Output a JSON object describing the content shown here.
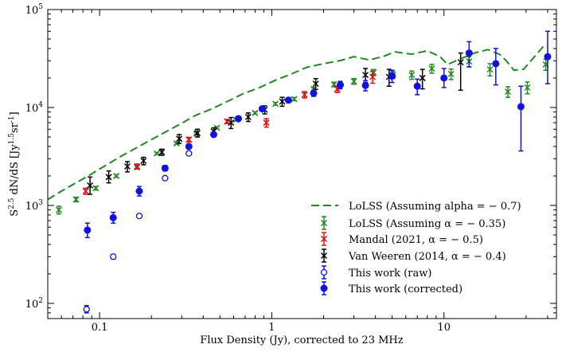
{
  "chart_data": {
    "type": "scatter",
    "xscale": "log",
    "yscale": "log",
    "xlim": [
      0.05,
      45
    ],
    "ylim": [
      70,
      100000
    ],
    "xlabel": "Flux Density (Jy), corrected to 23 MHz",
    "ylabel_main": "S",
    "ylabel_exp1": "2.5",
    "ylabel_mid": " dN/dS [Jy",
    "ylabel_exp2": "1.5",
    "ylabel_mid2": "sr",
    "ylabel_exp3": "-1",
    "ylabel_end": "]",
    "x_ticks": [
      {
        "value": 0.1,
        "label": "0.1"
      },
      {
        "value": 1,
        "label": "1"
      },
      {
        "value": 10,
        "label": "10"
      }
    ],
    "y_ticks": [
      {
        "value": 100,
        "base": "10",
        "exp": "2"
      },
      {
        "value": 1000,
        "base": "10",
        "exp": "3"
      },
      {
        "value": 10000,
        "base": "10",
        "exp": "4"
      },
      {
        "value": 100000,
        "base": "10",
        "exp": "5"
      }
    ],
    "legend_position": "lower-right",
    "series": [
      {
        "name": "LoLSS (Assuming alpha = − 0.7)",
        "style": "dashed-line",
        "color": "#1f8a1f",
        "points": [
          [
            0.05,
            1150
          ],
          [
            0.06,
            1400
          ],
          [
            0.075,
            1750
          ],
          [
            0.09,
            2100
          ],
          [
            0.11,
            2600
          ],
          [
            0.13,
            3100
          ],
          [
            0.16,
            3800
          ],
          [
            0.2,
            4700
          ],
          [
            0.24,
            5600
          ],
          [
            0.3,
            6900
          ],
          [
            0.36,
            8300
          ],
          [
            0.45,
            9700
          ],
          [
            0.55,
            11500
          ],
          [
            0.68,
            13800
          ],
          [
            0.85,
            16000
          ],
          [
            1.05,
            19000
          ],
          [
            1.3,
            22000
          ],
          [
            1.6,
            25800
          ],
          [
            2.0,
            28000
          ],
          [
            2.5,
            30200
          ],
          [
            3.0,
            33000
          ],
          [
            3.7,
            30500
          ],
          [
            4.5,
            33500
          ],
          [
            5.2,
            37000
          ],
          [
            6.5,
            35000
          ],
          [
            8.0,
            38000
          ],
          [
            9.5,
            33000
          ],
          [
            10.5,
            27500
          ],
          [
            12.5,
            31500
          ],
          [
            15,
            36000
          ],
          [
            18,
            39000
          ],
          [
            21,
            35000
          ],
          [
            23,
            30000
          ],
          [
            25.5,
            24000
          ],
          [
            29,
            24500
          ],
          [
            35,
            36000
          ],
          [
            39,
            45000
          ]
        ]
      },
      {
        "name": "LoLSS (Assuming α = − 0.35)",
        "style": "x-errorbar",
        "color": "#1f8a1f",
        "points": [
          {
            "x": 0.058,
            "y": 900,
            "lo": 820,
            "hi": 980
          },
          {
            "x": 0.073,
            "y": 1150,
            "lo": 1090,
            "hi": 1210
          },
          {
            "x": 0.095,
            "y": 1500,
            "lo": 1440,
            "hi": 1560
          },
          {
            "x": 0.125,
            "y": 2000,
            "lo": 1940,
            "hi": 2060
          },
          {
            "x": 0.165,
            "y": 2450,
            "lo": 2380,
            "hi": 2520
          },
          {
            "x": 0.215,
            "y": 3400,
            "lo": 3320,
            "hi": 3480
          },
          {
            "x": 0.28,
            "y": 4300,
            "lo": 4200,
            "hi": 4400
          },
          {
            "x": 0.365,
            "y": 5400,
            "lo": 5280,
            "hi": 5520
          },
          {
            "x": 0.48,
            "y": 6200,
            "lo": 6050,
            "hi": 6350
          },
          {
            "x": 0.62,
            "y": 7500,
            "lo": 7300,
            "hi": 7700
          },
          {
            "x": 0.8,
            "y": 8800,
            "lo": 8550,
            "hi": 9050
          },
          {
            "x": 1.05,
            "y": 10900,
            "lo": 10550,
            "hi": 11250
          },
          {
            "x": 1.35,
            "y": 12200,
            "lo": 11750,
            "hi": 12650
          },
          {
            "x": 1.75,
            "y": 15400,
            "lo": 14700,
            "hi": 16100
          },
          {
            "x": 2.3,
            "y": 17200,
            "lo": 16300,
            "hi": 18100
          },
          {
            "x": 3.0,
            "y": 18500,
            "lo": 17300,
            "hi": 19700
          },
          {
            "x": 3.9,
            "y": 22800,
            "lo": 21200,
            "hi": 24400
          },
          {
            "x": 5.05,
            "y": 21500,
            "lo": 19700,
            "hi": 23300
          },
          {
            "x": 6.5,
            "y": 21500,
            "lo": 19400,
            "hi": 23600
          },
          {
            "x": 8.5,
            "y": 25000,
            "lo": 22400,
            "hi": 27600
          },
          {
            "x": 11.0,
            "y": 22000,
            "lo": 19300,
            "hi": 24700
          },
          {
            "x": 14.0,
            "y": 29500,
            "lo": 26000,
            "hi": 33000
          },
          {
            "x": 18.5,
            "y": 24500,
            "lo": 21000,
            "hi": 28000
          },
          {
            "x": 23.5,
            "y": 14500,
            "lo": 12700,
            "hi": 16300
          },
          {
            "x": 30.5,
            "y": 16000,
            "lo": 13800,
            "hi": 18200
          },
          {
            "x": 39.0,
            "y": 27500,
            "lo": 24000,
            "hi": 31000
          }
        ]
      },
      {
        "name": "Mandal (2021, α = − 0.5)",
        "style": "x-errorbar",
        "color": "#e01010",
        "points": [
          {
            "x": 0.083,
            "y": 1400,
            "lo": 1300,
            "hi": 1500
          },
          {
            "x": 0.165,
            "y": 2500,
            "lo": 2350,
            "hi": 2650
          },
          {
            "x": 0.33,
            "y": 4700,
            "lo": 4450,
            "hi": 4950
          },
          {
            "x": 0.55,
            "y": 7200,
            "lo": 6850,
            "hi": 7550
          },
          {
            "x": 0.93,
            "y": 7000,
            "lo": 6300,
            "hi": 7700
          },
          {
            "x": 1.55,
            "y": 13500,
            "lo": 12500,
            "hi": 14500
          },
          {
            "x": 2.4,
            "y": 15400,
            "lo": 14200,
            "hi": 16600
          },
          {
            "x": 3.85,
            "y": 20500,
            "lo": 17700,
            "hi": 23300
          }
        ]
      },
      {
        "name": "Van Weeren (2014, α = − 0.4)",
        "style": "x-errorbar",
        "color": "#000000",
        "points": [
          {
            "x": 0.088,
            "y": 1600,
            "lo": 1300,
            "hi": 1950
          },
          {
            "x": 0.113,
            "y": 1950,
            "lo": 1700,
            "hi": 2250
          },
          {
            "x": 0.145,
            "y": 2500,
            "lo": 2200,
            "hi": 2800
          },
          {
            "x": 0.18,
            "y": 2850,
            "lo": 2600,
            "hi": 3100
          },
          {
            "x": 0.23,
            "y": 3500,
            "lo": 3250,
            "hi": 3750
          },
          {
            "x": 0.29,
            "y": 4800,
            "lo": 4300,
            "hi": 5300
          },
          {
            "x": 0.37,
            "y": 5500,
            "lo": 5000,
            "hi": 6000
          },
          {
            "x": 0.46,
            "y": 5700,
            "lo": 5200,
            "hi": 6200
          },
          {
            "x": 0.58,
            "y": 7000,
            "lo": 6100,
            "hi": 7900
          },
          {
            "x": 0.73,
            "y": 8000,
            "lo": 7200,
            "hi": 8800
          },
          {
            "x": 0.91,
            "y": 9500,
            "lo": 8600,
            "hi": 10400
          },
          {
            "x": 1.15,
            "y": 11500,
            "lo": 10300,
            "hi": 12700
          },
          {
            "x": 1.8,
            "y": 17500,
            "lo": 15300,
            "hi": 19700
          },
          {
            "x": 3.5,
            "y": 21500,
            "lo": 18000,
            "hi": 25000
          },
          {
            "x": 4.8,
            "y": 20500,
            "lo": 16500,
            "hi": 24500
          },
          {
            "x": 7.5,
            "y": 20000,
            "lo": 15500,
            "hi": 24500
          },
          {
            "x": 12.5,
            "y": 29000,
            "lo": 15000,
            "hi": 36000
          }
        ]
      },
      {
        "name": "This work (raw)",
        "style": "open-circle",
        "color": "#1010e8",
        "points": [
          {
            "x": 0.084,
            "y": 87,
            "lo": 80,
            "hi": 95
          },
          {
            "x": 0.12,
            "y": 300,
            "lo": 285,
            "hi": 315
          },
          {
            "x": 0.17,
            "y": 780,
            "lo": 750,
            "hi": 810
          },
          {
            "x": 0.24,
            "y": 1900,
            "lo": 1850,
            "hi": 1950
          },
          {
            "x": 0.33,
            "y": 3400,
            "lo": 3300,
            "hi": 3500
          }
        ]
      },
      {
        "name": "This work (corrected)",
        "style": "filled-circle",
        "color": "#1010e8",
        "points": [
          {
            "x": 0.085,
            "y": 560,
            "lo": 470,
            "hi": 660
          },
          {
            "x": 0.12,
            "y": 750,
            "lo": 660,
            "hi": 850
          },
          {
            "x": 0.17,
            "y": 1400,
            "lo": 1250,
            "hi": 1560
          },
          {
            "x": 0.24,
            "y": 2400,
            "lo": 2250,
            "hi": 2560
          },
          {
            "x": 0.33,
            "y": 4000,
            "lo": 3800,
            "hi": 4200
          },
          {
            "x": 0.46,
            "y": 5300,
            "lo": 5050,
            "hi": 5550
          },
          {
            "x": 0.64,
            "y": 7700,
            "lo": 7350,
            "hi": 8050
          },
          {
            "x": 0.88,
            "y": 9700,
            "lo": 9200,
            "hi": 10200
          },
          {
            "x": 1.25,
            "y": 11900,
            "lo": 11200,
            "hi": 12600
          },
          {
            "x": 1.75,
            "y": 14000,
            "lo": 13000,
            "hi": 15000
          },
          {
            "x": 2.5,
            "y": 17000,
            "lo": 15500,
            "hi": 18500
          },
          {
            "x": 3.5,
            "y": 16800,
            "lo": 14800,
            "hi": 18800
          },
          {
            "x": 5.0,
            "y": 21000,
            "lo": 18000,
            "hi": 24000
          },
          {
            "x": 7.0,
            "y": 16500,
            "lo": 13500,
            "hi": 19500
          },
          {
            "x": 10.0,
            "y": 20000,
            "lo": 16000,
            "hi": 25000
          },
          {
            "x": 14.0,
            "y": 36000,
            "lo": 26000,
            "hi": 47000
          },
          {
            "x": 20.0,
            "y": 28000,
            "lo": 17000,
            "hi": 40000
          },
          {
            "x": 28.0,
            "y": 10200,
            "lo": 3600,
            "hi": 16500
          },
          {
            "x": 40.0,
            "y": 33000,
            "lo": 17500,
            "hi": 60000
          }
        ]
      }
    ]
  }
}
